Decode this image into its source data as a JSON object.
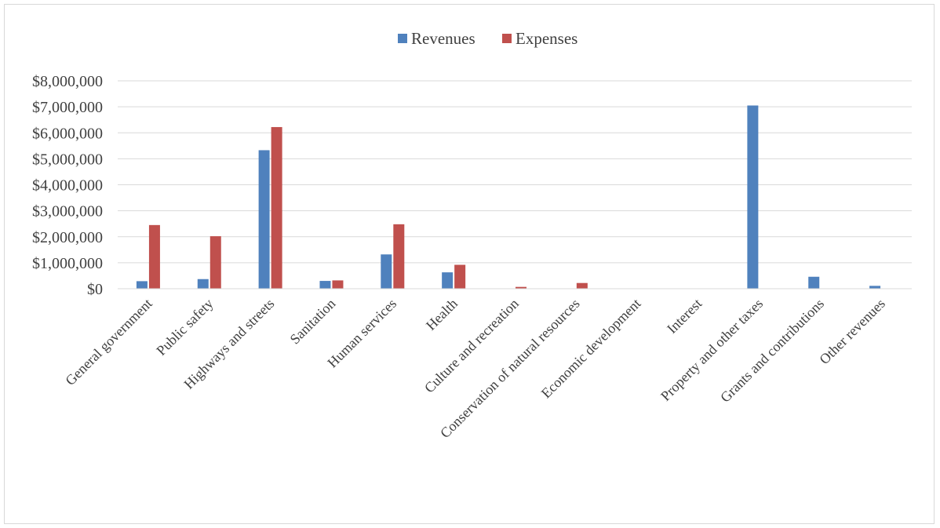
{
  "chart_data": {
    "type": "bar",
    "title": "",
    "xlabel": "",
    "ylabel": "",
    "ylim": [
      0,
      8000000
    ],
    "ytick_step": 1000000,
    "ytick_labels": [
      "$0",
      "$1,000,000",
      "$2,000,000",
      "$3,000,000",
      "$4,000,000",
      "$5,000,000",
      "$6,000,000",
      "$7,000,000",
      "$8,000,000"
    ],
    "grid": true,
    "legend_position": "top",
    "categories": [
      "General government",
      "Public safety",
      "Highways and streets",
      "Sanitation",
      "Human services",
      "Health",
      "Culture and recreation",
      "Conservation of natural resources",
      "Economic development",
      "Interest",
      "Property and other taxes",
      "Grants and contributions",
      "Other revenues"
    ],
    "series": [
      {
        "name": "Revenues",
        "color": "#4f81bd",
        "values": [
          290000,
          370000,
          5330000,
          300000,
          1320000,
          630000,
          0,
          0,
          0,
          0,
          7050000,
          460000,
          110000
        ]
      },
      {
        "name": "Expenses",
        "color": "#c0504d",
        "values": [
          2450000,
          2020000,
          6220000,
          320000,
          2480000,
          920000,
          70000,
          220000,
          0,
          0,
          0,
          0,
          0
        ]
      }
    ]
  }
}
